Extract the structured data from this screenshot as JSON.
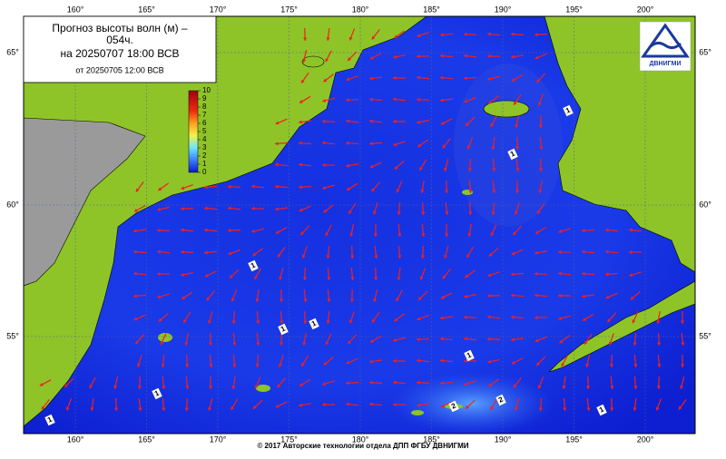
{
  "header": {
    "title_line1": "Прогноз высоты волн (м) –",
    "title_line2": "054ч.",
    "valid_time": "на 20250707 18:00 ВСВ",
    "issued_time": "от 20250705 12:00 ВСВ"
  },
  "logo": {
    "text": "ДВНИГМИ"
  },
  "longitudes": [
    {
      "value": 160,
      "label": "160°"
    },
    {
      "value": 165,
      "label": "165°"
    },
    {
      "value": 170,
      "label": "170°"
    },
    {
      "value": 175,
      "label": "175°"
    },
    {
      "value": 180,
      "label": "180°"
    },
    {
      "value": 185,
      "label": "185°"
    },
    {
      "value": 190,
      "label": "190°"
    },
    {
      "value": 195,
      "label": "195°"
    },
    {
      "value": 200,
      "label": "200°"
    }
  ],
  "latitudes": [
    {
      "value": 65,
      "label": "65°"
    },
    {
      "value": 60,
      "label": "60°"
    },
    {
      "value": 55,
      "label": "55°"
    }
  ],
  "colorbar": {
    "ticks": [
      10,
      9,
      8,
      7,
      6,
      5,
      4,
      3,
      2,
      1,
      0
    ]
  },
  "contour_labels": [
    "1",
    "1",
    "1",
    "1",
    "1",
    "1",
    "1",
    "1",
    "1",
    "2",
    "2"
  ],
  "footer": "© 2017 Авторские технологии отдела ДПП ФГБУ ДВНИГМИ"
}
